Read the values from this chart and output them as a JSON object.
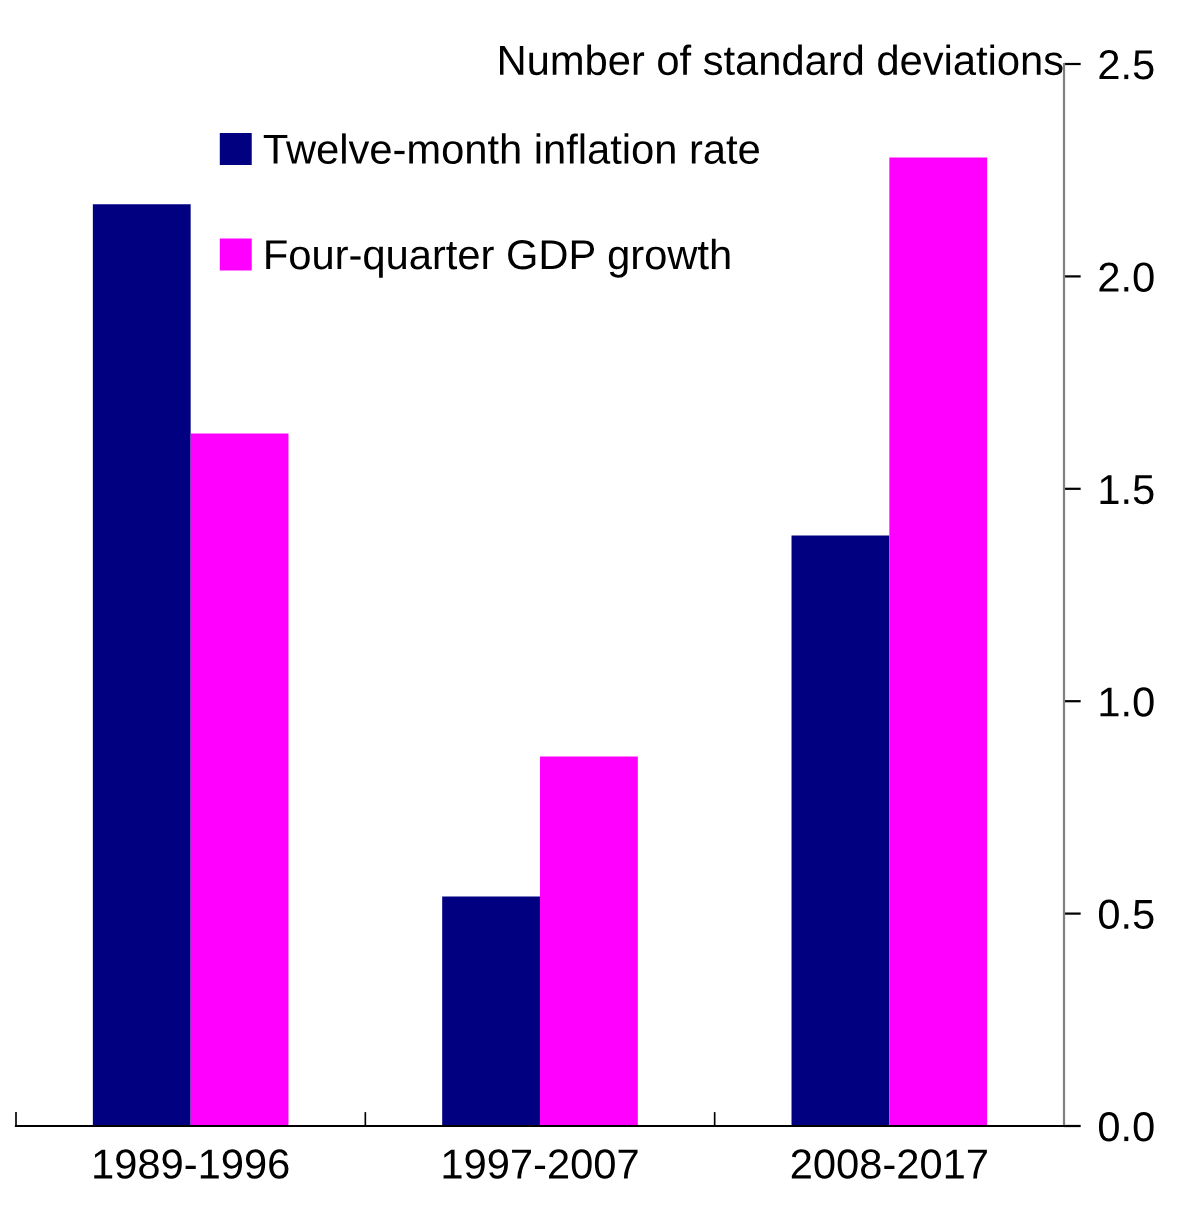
{
  "chart_data": {
    "type": "bar",
    "ylabel": "Number of standard deviations",
    "categories": [
      "1989-1996",
      "1997-2007",
      "2008-2017"
    ],
    "series": [
      {
        "name": "Twelve-month inflation rate",
        "color": "#000080",
        "values": [
          2.17,
          0.54,
          1.39
        ]
      },
      {
        "name": "Four-quarter GDP growth",
        "color": "#ff00ff",
        "values": [
          1.63,
          0.87,
          2.28
        ]
      }
    ],
    "ylim": [
      0,
      2.5
    ],
    "yticks": [
      {
        "value": 0,
        "label": "0.0"
      },
      {
        "value": 0.5,
        "label": "0.5"
      },
      {
        "value": 1,
        "label": "1.0"
      },
      {
        "value": 1.5,
        "label": "1.5"
      },
      {
        "value": 2,
        "label": "2.0"
      },
      {
        "value": 2.5,
        "label": "2.5"
      }
    ],
    "grid": false,
    "legend": "top left"
  }
}
